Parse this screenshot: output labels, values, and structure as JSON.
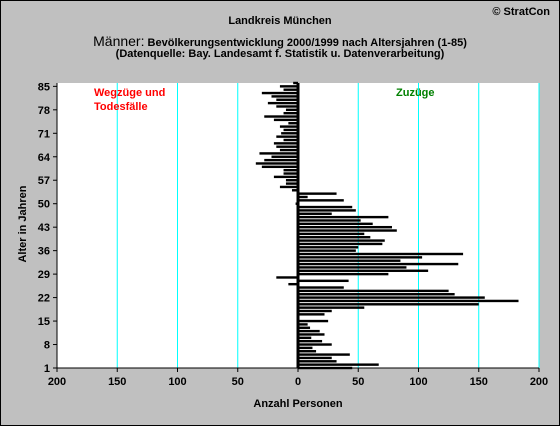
{
  "header": {
    "line1": "Landkreis München",
    "line2_big": "Männer:",
    "line2_rest": " Bevölkerungsentwicklung 2000/1999  nach Altersjahren (1-85)",
    "line3": "(Datenquelle: Bay. Landesamt f. Statistik u. Datenverarbeitung)",
    "copyright": "© StratCon"
  },
  "colors": {
    "background": "#c0c0c0",
    "plot_area": "#ffffff",
    "bars": "#000000",
    "gridlines": "#00ffff",
    "annotation_left": "#ff0000",
    "annotation_right": "#008000"
  },
  "chart_data": {
    "type": "bar",
    "orientation": "horizontal",
    "xlabel": "Anzahl Personen",
    "ylabel": "Alter in Jahren",
    "xlim": [
      -200,
      200
    ],
    "ylim": [
      1,
      86
    ],
    "x_ticks": [
      -200,
      -150,
      -100,
      -50,
      0,
      50,
      100,
      150,
      200
    ],
    "x_tick_labels": [
      "200",
      "150",
      "100",
      "50",
      "0",
      "50",
      "100",
      "150",
      "200"
    ],
    "y_ticks": [
      1,
      8,
      15,
      22,
      29,
      36,
      43,
      50,
      57,
      64,
      71,
      78,
      85
    ],
    "grid_x": true,
    "annotations": [
      {
        "text_lines": [
          "Wegzüge und",
          "Todesfälle"
        ],
        "color": "#ff0000",
        "side": "left"
      },
      {
        "text_lines": [
          "Zuzüge"
        ],
        "color": "#008000",
        "side": "right"
      }
    ],
    "ages": [
      1,
      2,
      3,
      4,
      5,
      6,
      7,
      8,
      9,
      10,
      11,
      12,
      13,
      14,
      15,
      16,
      17,
      18,
      19,
      20,
      21,
      22,
      23,
      24,
      25,
      26,
      27,
      28,
      29,
      30,
      31,
      32,
      33,
      34,
      35,
      36,
      37,
      38,
      39,
      40,
      41,
      42,
      43,
      44,
      45,
      46,
      47,
      48,
      49,
      50,
      51,
      52,
      53,
      54,
      55,
      56,
      57,
      58,
      59,
      60,
      61,
      62,
      63,
      64,
      65,
      66,
      67,
      68,
      69,
      70,
      71,
      72,
      73,
      74,
      75,
      76,
      77,
      78,
      79,
      80,
      81,
      82,
      83,
      84,
      85,
      86
    ],
    "values": [
      45,
      67,
      32,
      28,
      43,
      15,
      12,
      28,
      20,
      11,
      22,
      18,
      10,
      8,
      25,
      -1,
      22,
      28,
      55,
      150,
      183,
      155,
      130,
      125,
      38,
      -8,
      42,
      -18,
      75,
      108,
      90,
      133,
      85,
      103,
      137,
      48,
      50,
      70,
      72,
      60,
      55,
      82,
      78,
      62,
      52,
      75,
      28,
      48,
      45,
      -2,
      38,
      8,
      32,
      -5,
      -15,
      -10,
      -10,
      -20,
      -12,
      -12,
      -30,
      -35,
      -28,
      -22,
      -32,
      -15,
      -18,
      -20,
      -12,
      -18,
      -14,
      -12,
      -15,
      -8,
      -20,
      -28,
      -12,
      -10,
      -18,
      -25,
      -18,
      -22,
      -30,
      -12,
      -15,
      -4
    ]
  }
}
